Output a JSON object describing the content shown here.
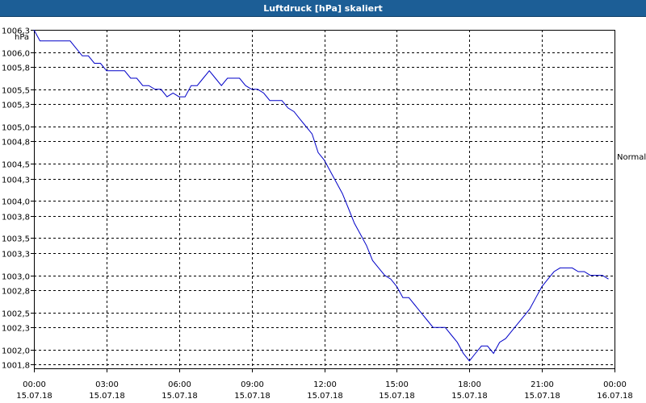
{
  "window": {
    "title": "Luftdruck [hPa] skaliert"
  },
  "chart_data": {
    "type": "line",
    "title": "Luftdruck [hPa] skaliert",
    "ylabel": "hPa",
    "ylim": [
      1001.75,
      1006.3
    ],
    "y_ticks": [
      "1006,3",
      "1006,0",
      "1005,8",
      "1005,5",
      "1005,3",
      "1005,0",
      "1004,8",
      "1004,5",
      "1004,3",
      "1004,0",
      "1003,8",
      "1003,5",
      "1003,3",
      "1003,0",
      "1002,8",
      "1002,5",
      "1002,3",
      "1002,0",
      "1001,8"
    ],
    "x_ticks": [
      {
        "time": "00:00",
        "date": "15.07.18"
      },
      {
        "time": "03:00",
        "date": "15.07.18"
      },
      {
        "time": "06:00",
        "date": "15.07.18"
      },
      {
        "time": "09:00",
        "date": "15.07.18"
      },
      {
        "time": "12:00",
        "date": "15.07.18"
      },
      {
        "time": "15:00",
        "date": "15.07.18"
      },
      {
        "time": "18:00",
        "date": "15.07.18"
      },
      {
        "time": "21:00",
        "date": "15.07.18"
      },
      {
        "time": "00:00",
        "date": "16.07.18"
      }
    ],
    "reference_line": {
      "label": "Normal",
      "value": 1004.6
    },
    "grid": true,
    "series": [
      {
        "color": "#0000c8",
        "x": [
          "00:00",
          "00:15",
          "00:30",
          "01:00",
          "01:30",
          "01:45",
          "02:00",
          "02:15",
          "02:30",
          "02:45",
          "03:00",
          "03:15",
          "03:30",
          "03:45",
          "04:00",
          "04:15",
          "04:30",
          "04:45",
          "05:00",
          "05:15",
          "05:30",
          "05:45",
          "06:00",
          "06:15",
          "06:30",
          "06:45",
          "07:00",
          "07:15",
          "07:30",
          "07:45",
          "08:00",
          "08:15",
          "08:30",
          "08:45",
          "09:00",
          "09:15",
          "09:30",
          "09:45",
          "10:00",
          "10:15",
          "10:30",
          "10:45",
          "11:00",
          "11:15",
          "11:30",
          "11:45",
          "12:00",
          "12:15",
          "12:30",
          "12:45",
          "13:00",
          "13:15",
          "13:30",
          "13:45",
          "14:00",
          "14:15",
          "14:30",
          "14:45",
          "15:00",
          "15:15",
          "15:30",
          "15:45",
          "16:00",
          "16:15",
          "16:30",
          "16:45",
          "17:00",
          "17:15",
          "17:30",
          "17:45",
          "18:00",
          "18:15",
          "18:30",
          "18:45",
          "19:00",
          "19:15",
          "19:30",
          "19:45",
          "20:00",
          "20:15",
          "20:30",
          "20:45",
          "21:00",
          "21:15",
          "21:30",
          "21:45",
          "22:00",
          "22:15",
          "22:30",
          "22:45",
          "23:00",
          "23:15",
          "23:30",
          "23:45"
        ],
        "y": [
          1006.3,
          1006.15,
          1006.15,
          1006.15,
          1006.15,
          1006.05,
          1005.95,
          1005.95,
          1005.85,
          1005.85,
          1005.75,
          1005.75,
          1005.75,
          1005.75,
          1005.65,
          1005.65,
          1005.55,
          1005.55,
          1005.5,
          1005.5,
          1005.4,
          1005.45,
          1005.4,
          1005.4,
          1005.55,
          1005.55,
          1005.65,
          1005.75,
          1005.65,
          1005.55,
          1005.65,
          1005.65,
          1005.65,
          1005.55,
          1005.5,
          1005.5,
          1005.45,
          1005.35,
          1005.35,
          1005.35,
          1005.25,
          1005.2,
          1005.1,
          1005.0,
          1004.9,
          1004.65,
          1004.55,
          1004.4,
          1004.25,
          1004.1,
          1003.9,
          1003.7,
          1003.55,
          1003.4,
          1003.2,
          1003.1,
          1003.0,
          1002.95,
          1002.85,
          1002.7,
          1002.7,
          1002.6,
          1002.5,
          1002.4,
          1002.3,
          1002.3,
          1002.3,
          1002.2,
          1002.1,
          1001.95,
          1001.85,
          1001.95,
          1002.05,
          1002.05,
          1001.95,
          1002.1,
          1002.15,
          1002.25,
          1002.35,
          1002.45,
          1002.55,
          1002.7,
          1002.85,
          1002.95,
          1003.05,
          1003.1,
          1003.1,
          1003.1,
          1003.05,
          1003.05,
          1003.0,
          1003.0,
          1003.0,
          1002.95
        ]
      }
    ]
  }
}
